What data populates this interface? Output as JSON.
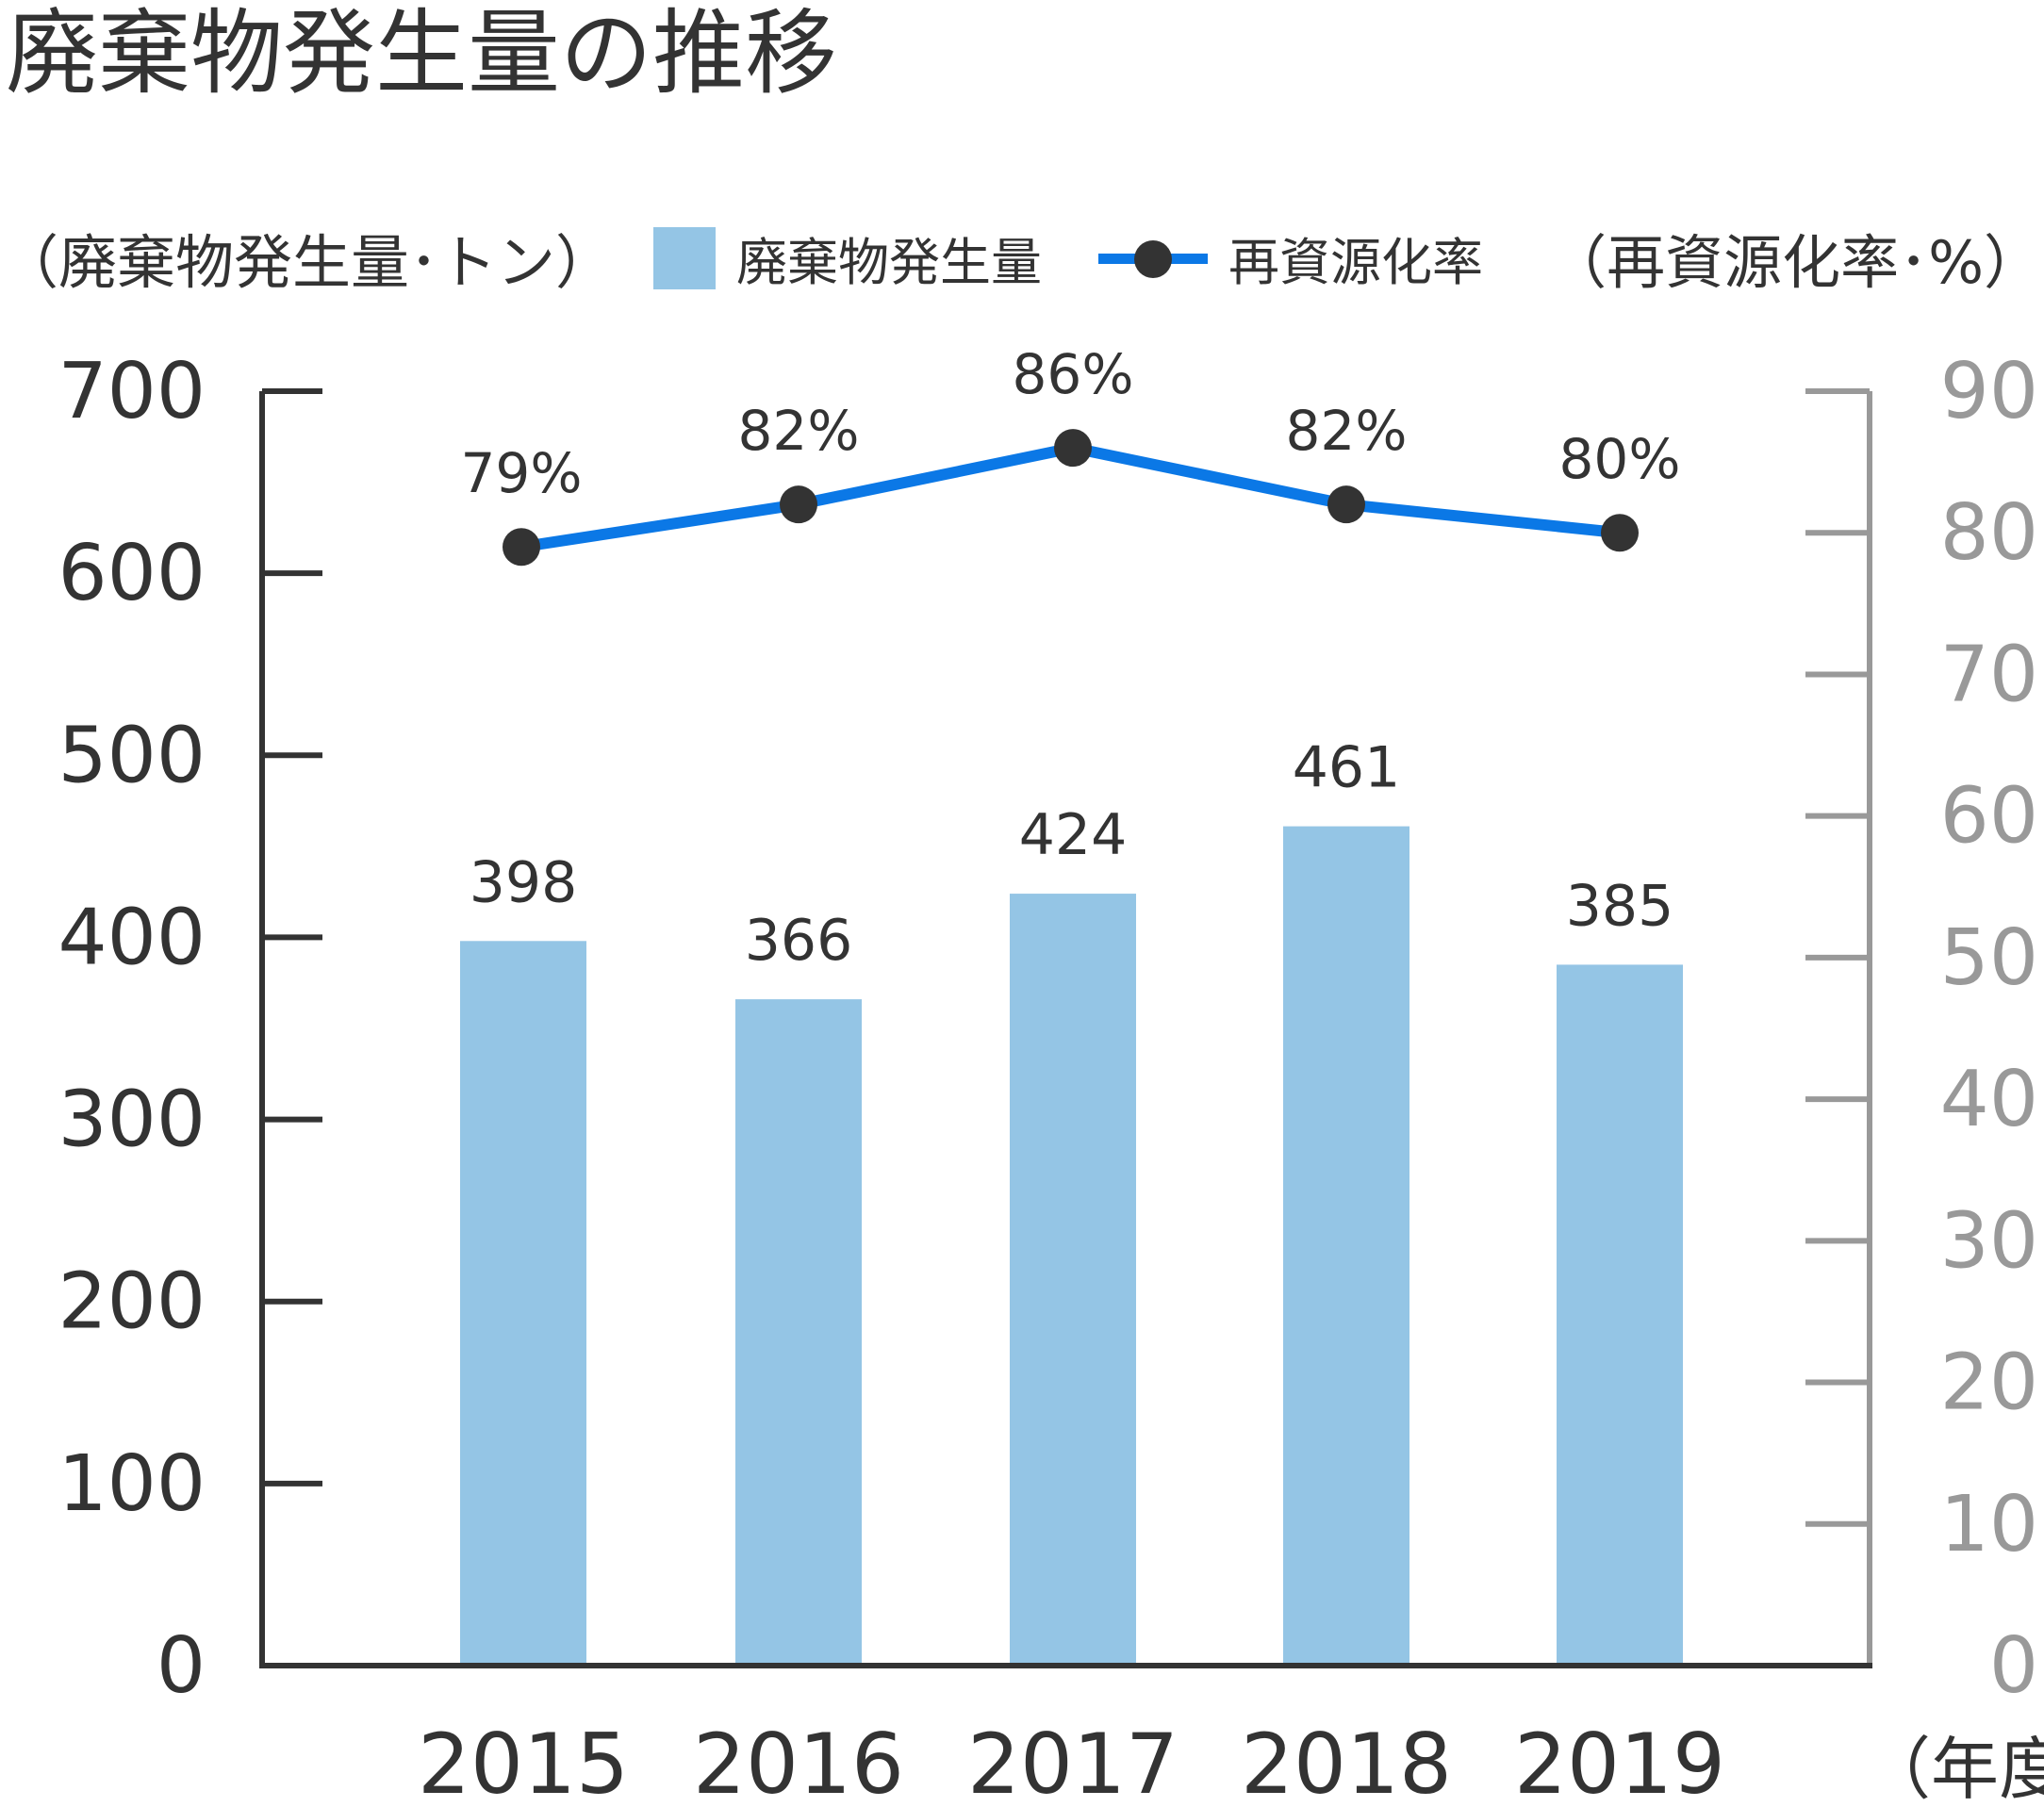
{
  "title": "廃棄物発生量の推移",
  "left_axis_unit": "（廃棄物発生量･トン）",
  "right_axis_unit": "（再資源化率･%）",
  "x_axis_unit": "（年度）",
  "legend": {
    "bar_label": "廃棄物発生量",
    "line_label": "再資源化率"
  },
  "colors": {
    "bar": "#94c5e5",
    "line": "#0b78e6",
    "marker": "#333333",
    "left_axis": "#333333",
    "right_axis": "#999999"
  },
  "chart_data": {
    "type": "bar",
    "categories": [
      "2015",
      "2016",
      "2017",
      "2018",
      "2019"
    ],
    "series": [
      {
        "name": "廃棄物発生量",
        "type": "bar",
        "axis": "left",
        "values": [
          398,
          366,
          424,
          461,
          385
        ],
        "labels": [
          "398",
          "366",
          "424",
          "461",
          "385"
        ]
      },
      {
        "name": "再資源化率",
        "type": "line",
        "axis": "right",
        "values": [
          79,
          82,
          86,
          82,
          80
        ],
        "labels": [
          "79%",
          "82%",
          "86%",
          "82%",
          "80%"
        ]
      }
    ],
    "y_left": {
      "lim": [
        0,
        700
      ],
      "ticks": [
        0,
        100,
        200,
        300,
        400,
        500,
        600,
        700
      ]
    },
    "y_right": {
      "lim": [
        0,
        90
      ],
      "ticks": [
        0,
        10,
        20,
        30,
        40,
        50,
        60,
        70,
        80,
        90
      ]
    },
    "legend_position": "top",
    "grid": false
  }
}
